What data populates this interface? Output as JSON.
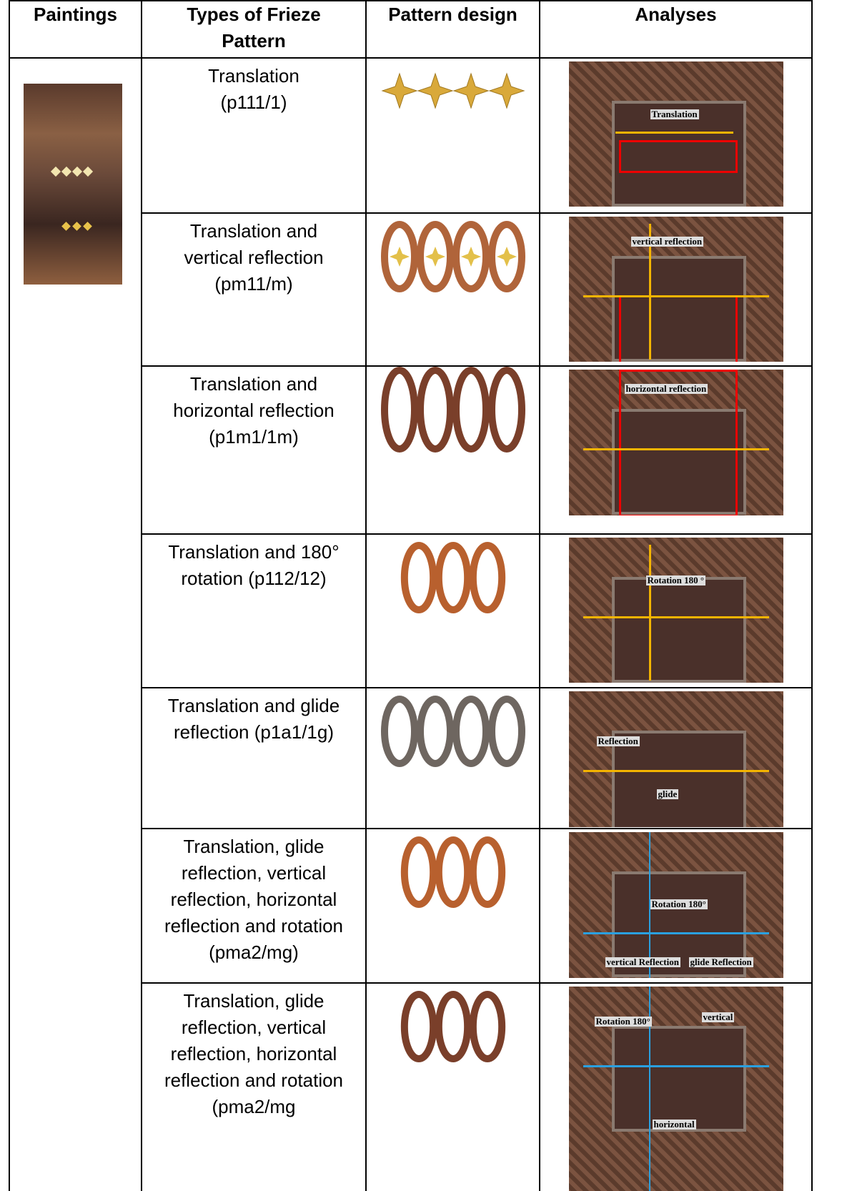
{
  "table": {
    "headers": [
      "Paintings",
      "Types of Frieze\nPattern",
      "Pattern design",
      "Analyses"
    ],
    "rows": [
      {
        "type": "Translation\n(p111/1)",
        "labels": [
          "Translation"
        ]
      },
      {
        "type": "Translation and\nvertical reflection\n(pm11/m)",
        "labels": [
          "vertical reflection"
        ]
      },
      {
        "type": "Translation and\nhorizontal reflection\n(p1m1/1m)",
        "labels": [
          "horizontal reflection"
        ]
      },
      {
        "type": "Translation and 180°\nrotation (p112/12)",
        "labels": [
          "Rotation 180 °"
        ]
      },
      {
        "type": "Translation and glide\nreflection (p1a1/1g)",
        "labels": [
          "Reflection",
          "glide"
        ]
      },
      {
        "type": "Translation, glide\nreflection, vertical\nreflection, horizontal\nreflection and rotation\n(pma2/mg)",
        "labels": [
          "Rotation 180°",
          "vertical Reflection",
          "glide Reflection"
        ]
      },
      {
        "type": "Translation, glide\nreflection, vertical\nreflection, horizontal\nreflection and rotation\n(pma2/mg",
        "labels": [
          "Rotation 180°",
          "vertical",
          "horizontal"
        ]
      }
    ]
  }
}
